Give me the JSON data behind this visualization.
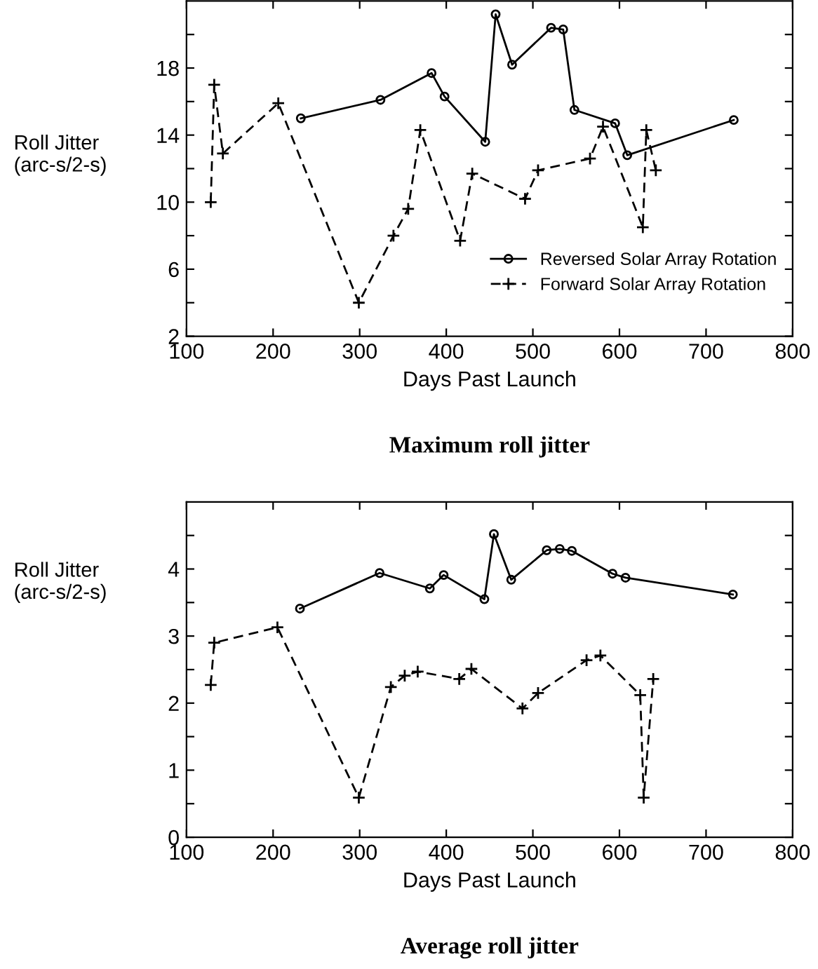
{
  "chart_data": [
    {
      "type": "line",
      "title": "Maximum roll jitter",
      "xlabel": "Days Past Launch",
      "ylabel": "Roll Jitter\n(arc-s/2-s)",
      "xlim": [
        100,
        800
      ],
      "xticks": [
        100,
        200,
        300,
        400,
        500,
        600,
        700,
        800
      ],
      "ylim": [
        2,
        22
      ],
      "yticks": [
        2,
        {
          "value": 4,
          "label": null
        },
        6,
        {
          "value": 8,
          "label": null
        },
        10,
        {
          "value": 12,
          "label": null
        },
        14,
        {
          "value": 16,
          "label": null
        },
        18,
        {
          "value": 20,
          "label": null
        }
      ],
      "legend": "bottom right",
      "grid": false,
      "series": [
        {
          "name": "Reversed Solar Array Rotation",
          "color": "#000000",
          "marker": "circle",
          "line_style": "solid",
          "x": [
            232,
            324,
            383,
            398,
            445,
            457,
            476,
            521,
            535,
            548,
            595,
            609,
            732
          ],
          "values": [
            15.0,
            16.1,
            17.7,
            16.3,
            13.6,
            21.2,
            18.2,
            20.4,
            20.3,
            15.5,
            14.7,
            12.8,
            14.9
          ]
        },
        {
          "name": "Forward Solar Array Rotation",
          "color": "#000000",
          "marker": "cross",
          "line_style": "dashed",
          "x": [
            128,
            132,
            142,
            206,
            299,
            339,
            356,
            370,
            416,
            430,
            491,
            506,
            566,
            581,
            627,
            631,
            642
          ],
          "values": [
            10.0,
            17.0,
            12.9,
            15.9,
            4.0,
            8.0,
            9.6,
            14.3,
            7.7,
            11.7,
            10.2,
            11.9,
            12.6,
            14.5,
            8.5,
            14.3,
            11.9
          ]
        }
      ]
    },
    {
      "type": "line",
      "title": "Average roll jitter",
      "xlabel": "Days Past Launch",
      "ylabel": "Roll Jitter\n(arc-s/2-s)",
      "xlim": [
        100,
        800
      ],
      "xticks": [
        100,
        200,
        300,
        400,
        500,
        600,
        700,
        800
      ],
      "ylim": [
        0,
        5
      ],
      "yticks": [
        0,
        {
          "value": 0.5,
          "label": null
        },
        1,
        {
          "value": 1.5,
          "label": null
        },
        2,
        {
          "value": 2.5,
          "label": null
        },
        3,
        {
          "value": 3.5,
          "label": null
        },
        4,
        {
          "value": 4.5,
          "label": null
        }
      ],
      "grid": false,
      "series": [
        {
          "color": "#000000",
          "marker": "circle",
          "line_style": "solid",
          "x": [
            231,
            323,
            381,
            397,
            444,
            455,
            475,
            516,
            531,
            545,
            592,
            607,
            731
          ],
          "values": [
            3.41,
            3.94,
            3.71,
            3.91,
            3.55,
            4.52,
            3.84,
            4.28,
            4.3,
            4.27,
            3.93,
            3.87,
            3.62
          ]
        },
        {
          "color": "#000000",
          "marker": "cross",
          "line_style": "dashed",
          "x": [
            128,
            132,
            205,
            299,
            336,
            352,
            367,
            415,
            429,
            488,
            506,
            562,
            578,
            624,
            628,
            639
          ],
          "values": [
            2.27,
            2.9,
            3.13,
            0.59,
            2.24,
            2.41,
            2.47,
            2.36,
            2.51,
            1.92,
            2.15,
            2.64,
            2.71,
            2.12,
            0.59,
            2.36
          ]
        }
      ]
    }
  ]
}
